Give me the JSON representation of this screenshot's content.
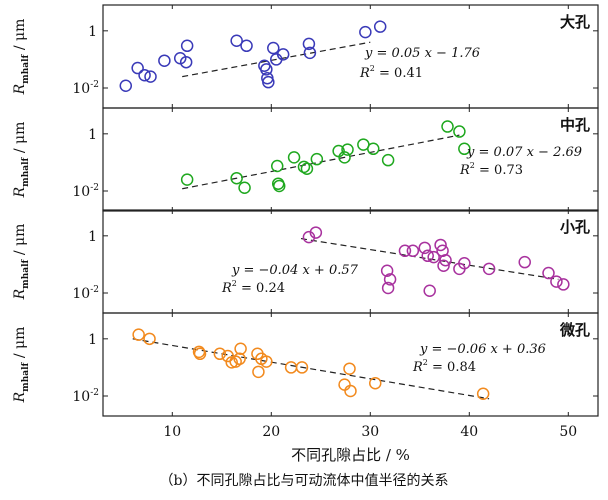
{
  "caption": "（b）不同孔隙占比与可动流体中值半径的关系",
  "chart_data": {
    "type": "scatter",
    "layout": "stacked-panels",
    "shared_x": {
      "label": "不同孔隙占比 / %",
      "range": [
        3,
        53
      ],
      "ticks": [
        10,
        20,
        30,
        40,
        50
      ],
      "tick_labels": [
        "10",
        "20",
        "30",
        "40",
        "50"
      ]
    },
    "y_axis": {
      "label_main": "R",
      "label_sub": "mhalf",
      "label_unit": " / μm",
      "scale": "log",
      "range": [
        0.002,
        8
      ],
      "ticks": [
        0.01,
        1
      ],
      "tick_label_base": "10",
      "tick_label_exp": "-2",
      "tick_label_one": "1"
    },
    "panels": [
      {
        "name": "大孔",
        "color": "#3a3ab8",
        "eq": "y = 0.05 x − 1.76",
        "r2_main": "R",
        "r2_sup": "2",
        "r2_val": " = 0.41",
        "fit": {
          "x": [
            11,
            30
          ],
          "y": [
            0.025,
            0.4
          ]
        },
        "points": [
          {
            "x": 5.3,
            "y": 0.012
          },
          {
            "x": 6.5,
            "y": 0.05
          },
          {
            "x": 7.2,
            "y": 0.028
          },
          {
            "x": 7.8,
            "y": 0.025
          },
          {
            "x": 9.2,
            "y": 0.09
          },
          {
            "x": 10.8,
            "y": 0.11
          },
          {
            "x": 11.4,
            "y": 0.08
          },
          {
            "x": 11.5,
            "y": 0.3
          },
          {
            "x": 16.5,
            "y": 0.45
          },
          {
            "x": 17.5,
            "y": 0.3
          },
          {
            "x": 19.3,
            "y": 0.06
          },
          {
            "x": 19.5,
            "y": 0.045
          },
          {
            "x": 19.6,
            "y": 0.022
          },
          {
            "x": 19.7,
            "y": 0.016
          },
          {
            "x": 20.2,
            "y": 0.25
          },
          {
            "x": 20.5,
            "y": 0.1
          },
          {
            "x": 21.2,
            "y": 0.15
          },
          {
            "x": 23.8,
            "y": 0.35
          },
          {
            "x": 23.9,
            "y": 0.17
          },
          {
            "x": 29.5,
            "y": 0.9
          },
          {
            "x": 31.0,
            "y": 1.4
          }
        ]
      },
      {
        "name": "中孔",
        "color": "#1fa81f",
        "eq": "y = 0.07 x − 2.69",
        "r2_main": "R",
        "r2_sup": "2",
        "r2_val": " = 0.73",
        "fit": {
          "x": [
            11,
            39
          ],
          "y": [
            0.012,
            0.9
          ]
        },
        "points": [
          {
            "x": 11.5,
            "y": 0.025
          },
          {
            "x": 16.5,
            "y": 0.028
          },
          {
            "x": 17.3,
            "y": 0.013
          },
          {
            "x": 20.6,
            "y": 0.075
          },
          {
            "x": 20.7,
            "y": 0.018
          },
          {
            "x": 20.8,
            "y": 0.015
          },
          {
            "x": 22.3,
            "y": 0.15
          },
          {
            "x": 23.3,
            "y": 0.07
          },
          {
            "x": 23.6,
            "y": 0.06
          },
          {
            "x": 24.6,
            "y": 0.13
          },
          {
            "x": 26.8,
            "y": 0.25
          },
          {
            "x": 27.7,
            "y": 0.28
          },
          {
            "x": 27.4,
            "y": 0.15
          },
          {
            "x": 29.3,
            "y": 0.42
          },
          {
            "x": 30.3,
            "y": 0.3
          },
          {
            "x": 31.8,
            "y": 0.12
          },
          {
            "x": 37.8,
            "y": 1.8
          },
          {
            "x": 39.0,
            "y": 1.2
          },
          {
            "x": 39.5,
            "y": 0.3
          }
        ]
      },
      {
        "name": "小孔",
        "color": "#a8329e",
        "eq": "y = −0.04 x + 0.57",
        "r2_main": "R",
        "r2_sup": "2",
        "r2_val": " = 0.24",
        "fit": {
          "x": [
            23,
            49
          ],
          "y": [
            0.8,
            0.03
          ]
        },
        "points": [
          {
            "x": 23.8,
            "y": 0.9
          },
          {
            "x": 24.5,
            "y": 1.3
          },
          {
            "x": 31.7,
            "y": 0.06
          },
          {
            "x": 31.8,
            "y": 0.015
          },
          {
            "x": 32.0,
            "y": 0.03
          },
          {
            "x": 33.5,
            "y": 0.3
          },
          {
            "x": 34.3,
            "y": 0.3
          },
          {
            "x": 35.5,
            "y": 0.38
          },
          {
            "x": 35.8,
            "y": 0.2
          },
          {
            "x": 36.0,
            "y": 0.012
          },
          {
            "x": 36.4,
            "y": 0.18
          },
          {
            "x": 37.1,
            "y": 0.48
          },
          {
            "x": 37.3,
            "y": 0.3
          },
          {
            "x": 37.6,
            "y": 0.14
          },
          {
            "x": 37.4,
            "y": 0.09
          },
          {
            "x": 39.0,
            "y": 0.07
          },
          {
            "x": 39.5,
            "y": 0.11
          },
          {
            "x": 42.0,
            "y": 0.07
          },
          {
            "x": 45.6,
            "y": 0.12
          },
          {
            "x": 48.0,
            "y": 0.05
          },
          {
            "x": 48.8,
            "y": 0.025
          },
          {
            "x": 49.5,
            "y": 0.02
          }
        ]
      },
      {
        "name": "微孔",
        "color": "#f28a1e",
        "eq": "y = −0.06 x + 0.36",
        "r2_main": "R",
        "r2_sup": "2",
        "r2_val": " = 0.84",
        "fit": {
          "x": [
            6,
            42
          ],
          "y": [
            1.0,
            0.008
          ]
        },
        "points": [
          {
            "x": 6.6,
            "y": 1.4
          },
          {
            "x": 7.7,
            "y": 1.0
          },
          {
            "x": 12.7,
            "y": 0.35
          },
          {
            "x": 12.8,
            "y": 0.3
          },
          {
            "x": 14.8,
            "y": 0.3
          },
          {
            "x": 15.6,
            "y": 0.25
          },
          {
            "x": 16.0,
            "y": 0.15
          },
          {
            "x": 16.4,
            "y": 0.16
          },
          {
            "x": 16.8,
            "y": 0.2
          },
          {
            "x": 16.9,
            "y": 0.45
          },
          {
            "x": 18.6,
            "y": 0.3
          },
          {
            "x": 18.7,
            "y": 0.07
          },
          {
            "x": 19.0,
            "y": 0.2
          },
          {
            "x": 19.5,
            "y": 0.16
          },
          {
            "x": 22.0,
            "y": 0.1
          },
          {
            "x": 23.1,
            "y": 0.1
          },
          {
            "x": 27.4,
            "y": 0.025
          },
          {
            "x": 27.9,
            "y": 0.09
          },
          {
            "x": 28.0,
            "y": 0.015
          },
          {
            "x": 30.5,
            "y": 0.028
          },
          {
            "x": 41.4,
            "y": 0.012
          }
        ]
      }
    ]
  }
}
